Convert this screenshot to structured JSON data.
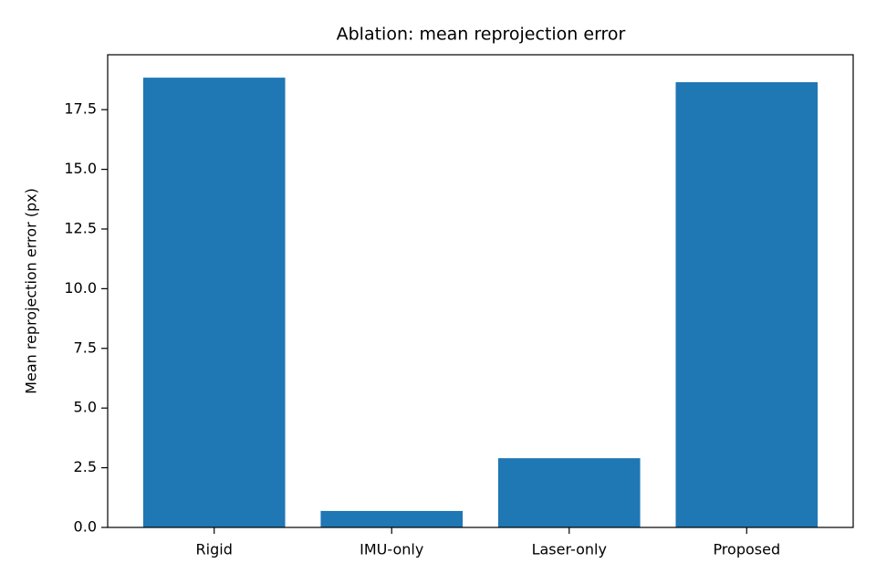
{
  "chart_data": {
    "type": "bar",
    "title": "Ablation: mean reprojection error",
    "y_label": "Mean reprojection error (px)",
    "categories": [
      "Rigid",
      "IMU-only",
      "Laser-only",
      "Proposed"
    ],
    "values": [
      18.84,
      0.69,
      2.9,
      18.65
    ],
    "color": "#1f77b4",
    "ylim": [
      0,
      19.8
    ],
    "yticks": [
      {
        "value": 0,
        "label": "0.0"
      },
      2.5,
      {
        "value": 5,
        "label": "5.0"
      },
      7.5,
      {
        "value": 10,
        "label": "10.0"
      },
      12.5,
      {
        "value": 15,
        "label": "15.0"
      },
      17.5
    ],
    "grid": false
  }
}
